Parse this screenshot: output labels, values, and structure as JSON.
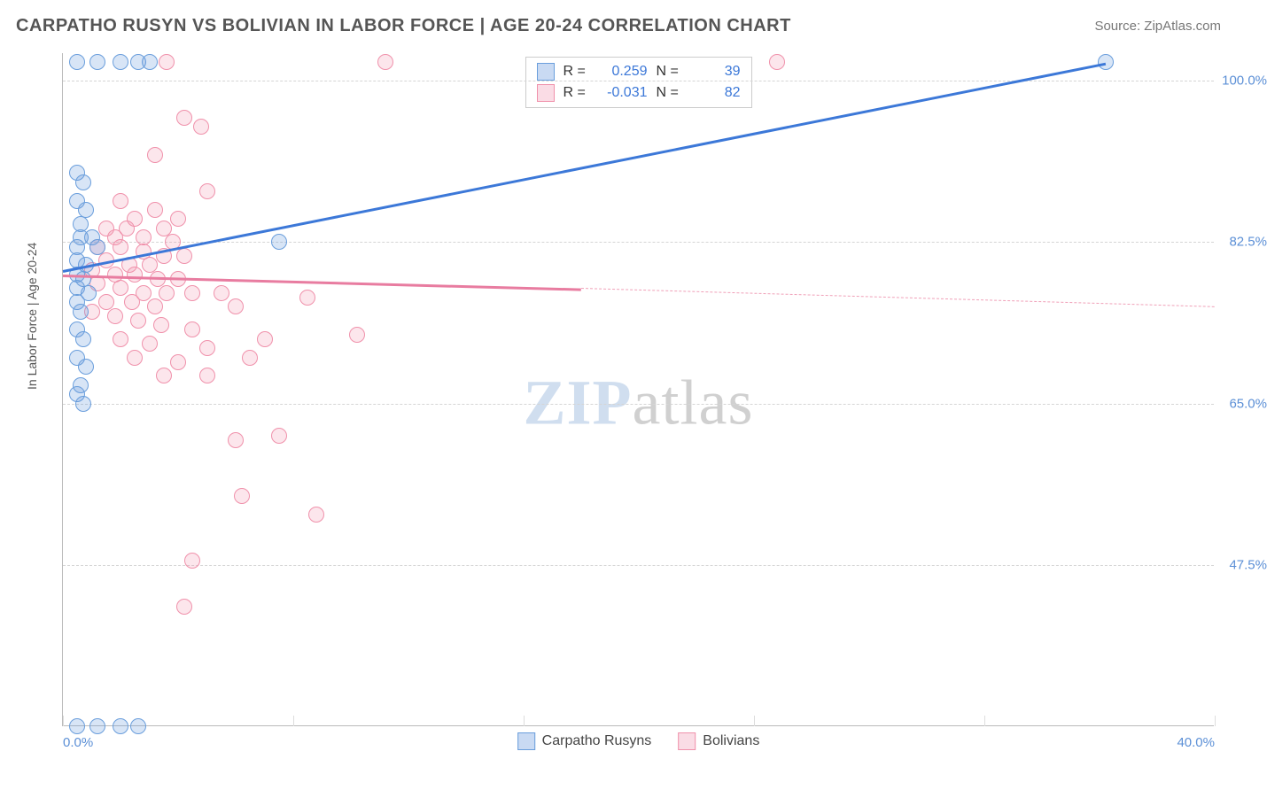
{
  "header": {
    "title": "CARPATHO RUSYN VS BOLIVIAN IN LABOR FORCE | AGE 20-24 CORRELATION CHART",
    "source": "Source: ZipAtlas.com"
  },
  "chart": {
    "type": "scatter",
    "ylabel": "In Labor Force | Age 20-24",
    "watermark": {
      "part1": "ZIP",
      "part2": "atlas"
    },
    "xlim": [
      0,
      40
    ],
    "ylim": [
      30,
      103
    ],
    "xticks": [
      {
        "v": 0,
        "label": "0.0%"
      },
      {
        "v": 40,
        "label": "40.0%"
      }
    ],
    "xtick_marks": [
      0,
      8,
      16,
      24,
      32,
      40
    ],
    "yticks": [
      {
        "v": 47.5,
        "label": "47.5%"
      },
      {
        "v": 65.0,
        "label": "65.0%"
      },
      {
        "v": 82.5,
        "label": "82.5%"
      },
      {
        "v": 100.0,
        "label": "100.0%"
      }
    ],
    "grid_color": "#d5d5d5",
    "background_color": "#ffffff",
    "axis_color": "#bbbbbb",
    "tick_label_color": "#5b8fd6",
    "series": {
      "blue": {
        "name": "Carpatho Rusyns",
        "color_fill": "rgba(100,150,220,0.25)",
        "color_stroke": "#6a9edc",
        "trend_color": "#3c78d8",
        "r_value": "0.259",
        "n_value": "39",
        "trend": {
          "x1": 0,
          "y1": 79.5,
          "x2": 36.2,
          "y2": 102
        },
        "points": [
          [
            0.5,
            102
          ],
          [
            1.2,
            102
          ],
          [
            2.0,
            102
          ],
          [
            2.6,
            102
          ],
          [
            3.0,
            102
          ],
          [
            36.2,
            102
          ],
          [
            0.5,
            90
          ],
          [
            0.7,
            89
          ],
          [
            0.5,
            87
          ],
          [
            0.8,
            86
          ],
          [
            0.6,
            84.5
          ],
          [
            0.6,
            83
          ],
          [
            1.0,
            83
          ],
          [
            0.5,
            82
          ],
          [
            1.2,
            82
          ],
          [
            0.5,
            80.5
          ],
          [
            0.8,
            80
          ],
          [
            0.5,
            79
          ],
          [
            0.7,
            78.5
          ],
          [
            0.5,
            77.5
          ],
          [
            0.9,
            77
          ],
          [
            0.5,
            76
          ],
          [
            0.6,
            75
          ],
          [
            0.5,
            73
          ],
          [
            0.7,
            72
          ],
          [
            0.5,
            70
          ],
          [
            0.8,
            69
          ],
          [
            0.6,
            67
          ],
          [
            0.5,
            66
          ],
          [
            0.7,
            65
          ],
          [
            7.5,
            82.5
          ],
          [
            0.5,
            30
          ],
          [
            1.2,
            30
          ],
          [
            2.0,
            30
          ],
          [
            2.6,
            30
          ]
        ]
      },
      "pink": {
        "name": "Bolivians",
        "color_fill": "rgba(240,140,170,0.22)",
        "color_stroke": "#f091ab",
        "trend_color": "#e87ca0",
        "r_value": "-0.031",
        "n_value": "82",
        "trend_solid": {
          "x1": 0,
          "y1": 79,
          "x2": 18,
          "y2": 77.5
        },
        "trend_dash": {
          "x1": 18,
          "y1": 77.5,
          "x2": 40,
          "y2": 75.5
        },
        "points": [
          [
            3.6,
            102
          ],
          [
            11.2,
            102
          ],
          [
            24.8,
            102
          ],
          [
            4.2,
            96
          ],
          [
            4.8,
            95
          ],
          [
            3.2,
            92
          ],
          [
            5.0,
            88
          ],
          [
            2.0,
            87
          ],
          [
            3.2,
            86
          ],
          [
            2.5,
            85
          ],
          [
            4.0,
            85
          ],
          [
            1.5,
            84
          ],
          [
            2.2,
            84
          ],
          [
            3.5,
            84
          ],
          [
            1.8,
            83
          ],
          [
            2.8,
            83
          ],
          [
            3.8,
            82.5
          ],
          [
            1.2,
            82
          ],
          [
            2.0,
            82
          ],
          [
            2.8,
            81.5
          ],
          [
            3.5,
            81
          ],
          [
            4.2,
            81
          ],
          [
            1.5,
            80.5
          ],
          [
            2.3,
            80
          ],
          [
            3.0,
            80
          ],
          [
            1.0,
            79.5
          ],
          [
            1.8,
            79
          ],
          [
            2.5,
            79
          ],
          [
            3.3,
            78.5
          ],
          [
            4.0,
            78.5
          ],
          [
            1.2,
            78
          ],
          [
            2.0,
            77.5
          ],
          [
            2.8,
            77
          ],
          [
            3.6,
            77
          ],
          [
            4.5,
            77
          ],
          [
            1.5,
            76
          ],
          [
            2.4,
            76
          ],
          [
            3.2,
            75.5
          ],
          [
            5.5,
            77
          ],
          [
            1.0,
            75
          ],
          [
            1.8,
            74.5
          ],
          [
            2.6,
            74
          ],
          [
            3.4,
            73.5
          ],
          [
            4.5,
            73
          ],
          [
            6.0,
            75.5
          ],
          [
            7.0,
            72
          ],
          [
            8.5,
            76.5
          ],
          [
            10.2,
            72.5
          ],
          [
            2.0,
            72
          ],
          [
            3.0,
            71.5
          ],
          [
            5.0,
            71
          ],
          [
            2.5,
            70
          ],
          [
            4.0,
            69.5
          ],
          [
            6.5,
            70
          ],
          [
            3.5,
            68
          ],
          [
            5.0,
            68
          ],
          [
            6.0,
            61
          ],
          [
            7.5,
            61.5
          ],
          [
            6.2,
            55
          ],
          [
            8.8,
            53
          ],
          [
            4.5,
            48
          ],
          [
            4.2,
            43
          ]
        ]
      }
    },
    "legend_top": {
      "r_label": "R =",
      "n_label": "N ="
    },
    "marker_size": 18
  }
}
